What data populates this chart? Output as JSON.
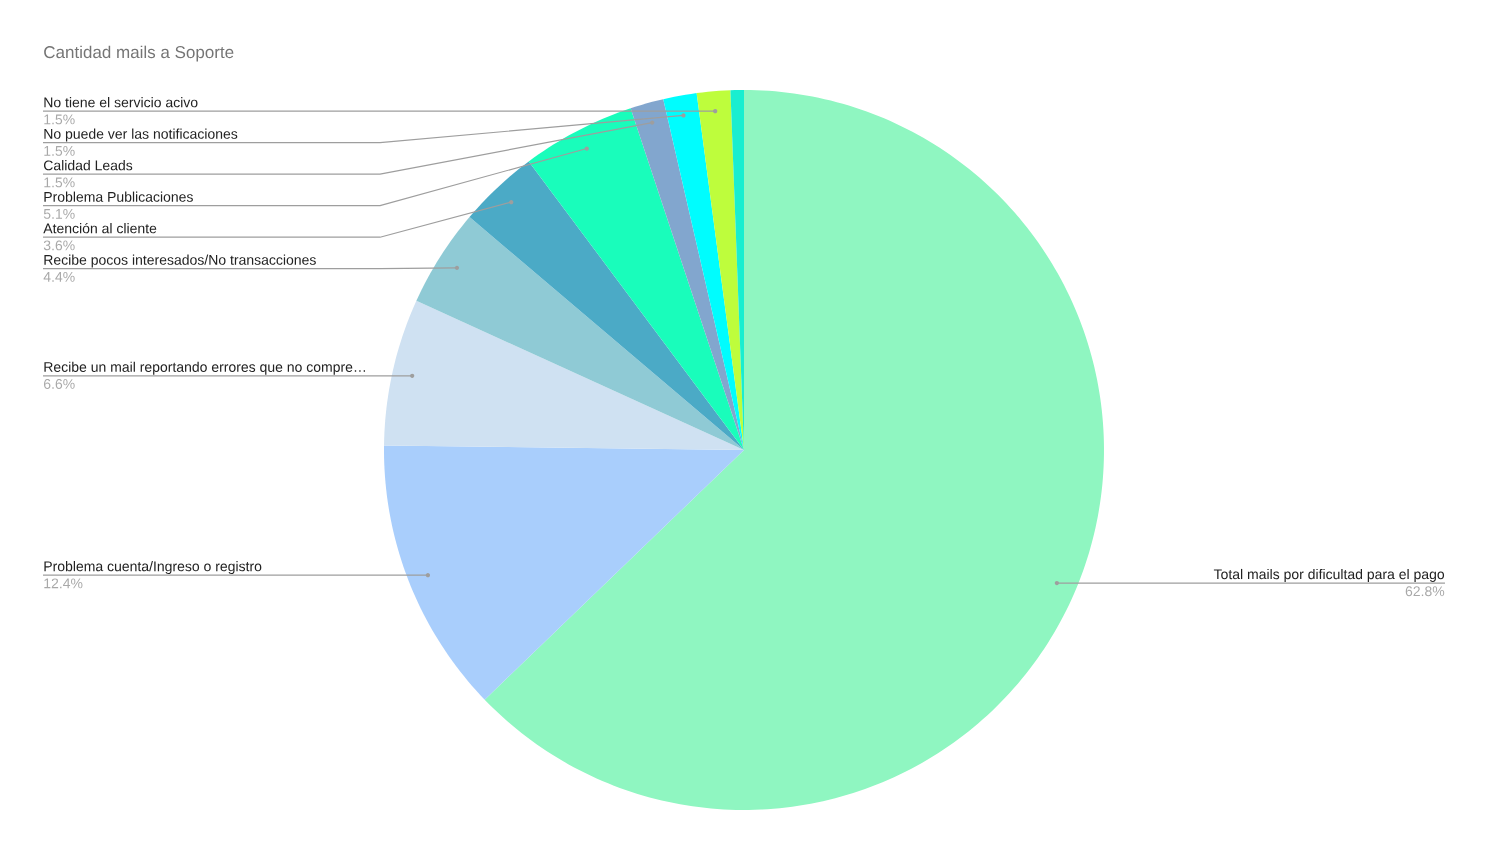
{
  "chart_data": {
    "type": "pie",
    "title": "Cantidad mails a Soporte",
    "categories": [
      "Total mails por dificultad para el pago",
      "Problema cuenta/Ingreso o registro",
      "Recibe un mail reportando errores que no compre…",
      "Recibe pocos interesados/No transacciones",
      "Atención al cliente",
      "Problema Publicaciones",
      "Calidad Leads",
      "No puede ver las notificaciones",
      "No tiene el servicio acivo",
      null
    ],
    "values": [
      62.8,
      12.4,
      6.6,
      4.4,
      3.6,
      5.1,
      1.5,
      1.5,
      1.5,
      0.6
    ],
    "colors": [
      "#8ff6c1",
      "#a9cefc",
      "#cfe1f2",
      "#8fcad5",
      "#4baac6",
      "#19fdbb",
      "#82a6ce",
      "#00fdfe",
      "#befd3c",
      "#19eed0"
    ],
    "value_labels": [
      "62.8%",
      "12.4%",
      "6.6%",
      "4.4%",
      "3.6%",
      "5.1%",
      "1.5%",
      "1.5%",
      "1.5%",
      null
    ]
  }
}
